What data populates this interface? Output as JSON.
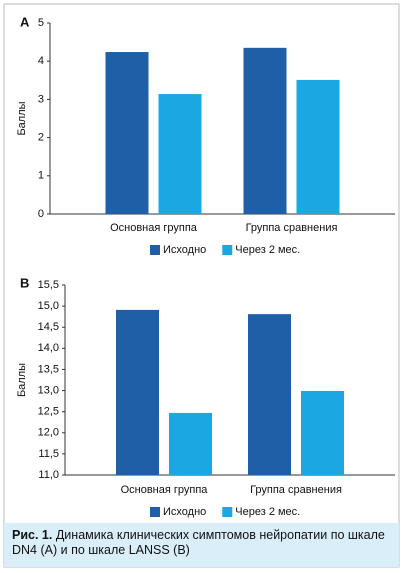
{
  "chart_data": [
    {
      "type": "bar",
      "panel_label": "A",
      "y_label": "Баллы",
      "categories": [
        "Основная группа",
        "Группа сравнения"
      ],
      "series": [
        {
          "name": "Исходно",
          "color": "#1f5fa8",
          "values": [
            4.24,
            4.35
          ]
        },
        {
          "name": "Через 2 мес.",
          "color": "#1ba8e2",
          "values": [
            3.14,
            3.51
          ]
        }
      ],
      "ylim": [
        0,
        5
      ],
      "yticks": [
        0,
        1,
        2,
        3,
        4,
        5
      ]
    },
    {
      "type": "bar",
      "panel_label": "B",
      "y_label": "Баллы",
      "categories": [
        "Основная группа",
        "Группа сравнения"
      ],
      "series": [
        {
          "name": "Исходно",
          "color": "#1f5fa8",
          "values": [
            14.91,
            14.81
          ]
        },
        {
          "name": "Через 2 мес.",
          "color": "#1ba8e2",
          "values": [
            12.47,
            12.99
          ]
        }
      ],
      "ylim": [
        11,
        15.5
      ],
      "yticks": [
        {
          "value": 11,
          "label": "11,0"
        },
        {
          "value": 11.5,
          "label": "11,5"
        },
        {
          "value": 12,
          "label": "12,0"
        },
        {
          "value": 12.5,
          "label": "12,5"
        },
        {
          "value": 13,
          "label": "13,0"
        },
        {
          "value": 13.5,
          "label": "13,5"
        },
        {
          "value": 14,
          "label": "14,0"
        },
        {
          "value": 14.5,
          "label": "14,5"
        },
        {
          "value": 15,
          "label": "15,0"
        },
        {
          "value": 15.5,
          "label": "15,5"
        }
      ]
    }
  ],
  "caption": {
    "label": "Рис. 1.",
    "text": "Динамика клинических симптомов нейропатии по шкале DN4 (A) и по шкале LANSS (B)"
  }
}
